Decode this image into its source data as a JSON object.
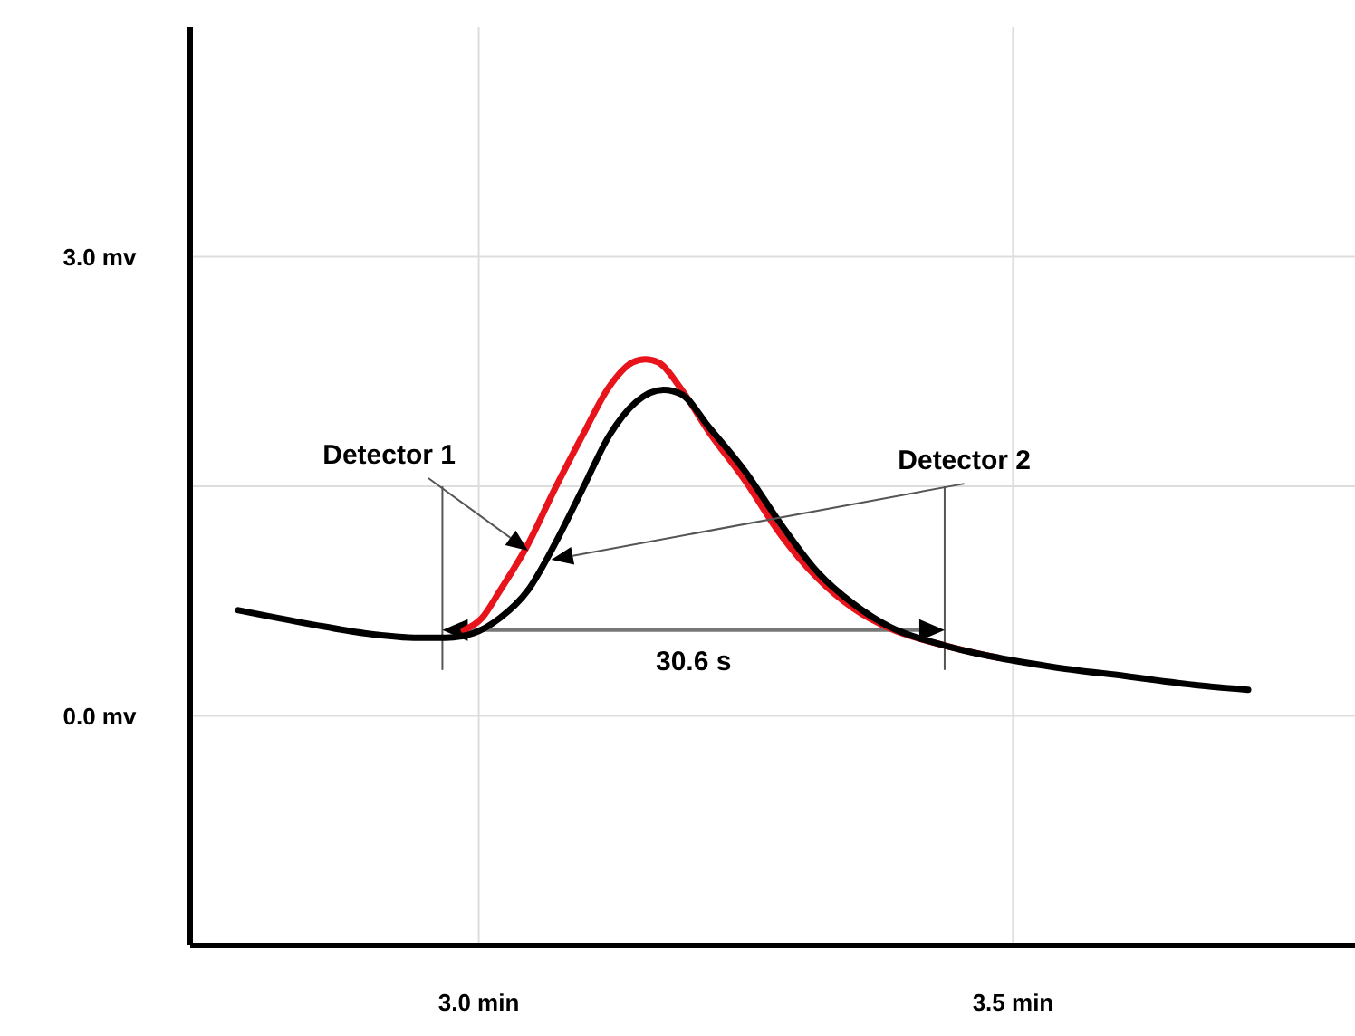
{
  "chart_data": {
    "type": "line",
    "xlim": [
      2.73,
      3.82
    ],
    "ylim": [
      -1.5,
      4.5
    ],
    "xticks": [
      {
        "value": 3.0,
        "label": "3.0 min"
      },
      {
        "value": 3.5,
        "label": "3.5 min"
      }
    ],
    "yticks": [
      {
        "value": 0,
        "label": "0.0 mv"
      },
      {
        "value": 1.5,
        "label": null
      },
      {
        "value": 3.0,
        "label": "3.0 mv"
      }
    ],
    "grid": true,
    "marker": "none",
    "line_style": "solid",
    "series": [
      {
        "color": "#e8141b",
        "x": [
          2.986,
          3.003,
          3.02,
          3.046,
          3.071,
          3.097,
          3.122,
          3.144,
          3.156,
          3.168,
          3.19,
          3.215,
          3.249,
          3.283,
          3.317,
          3.351,
          3.385,
          3.436,
          3.486
        ],
        "values": [
          0.56,
          0.64,
          0.82,
          1.12,
          1.48,
          1.83,
          2.15,
          2.31,
          2.33,
          2.31,
          2.13,
          1.86,
          1.54,
          1.18,
          0.9,
          0.7,
          0.57,
          0.46,
          0.38
        ]
      },
      {
        "color": "#000000",
        "x": [
          2.775,
          2.842,
          2.893,
          2.944,
          2.969,
          2.995,
          3.02,
          3.046,
          3.071,
          3.097,
          3.122,
          3.147,
          3.173,
          3.19,
          3.215,
          3.249,
          3.283,
          3.317,
          3.351,
          3.385,
          3.436,
          3.486,
          3.537,
          3.605,
          3.673,
          3.72
        ],
        "values": [
          0.69,
          0.6,
          0.54,
          0.51,
          0.51,
          0.54,
          0.64,
          0.82,
          1.12,
          1.48,
          1.83,
          2.05,
          2.13,
          2.1,
          1.89,
          1.6,
          1.25,
          0.94,
          0.73,
          0.58,
          0.46,
          0.38,
          0.32,
          0.26,
          0.2,
          0.17
        ]
      }
    ],
    "ref_lines": [
      {
        "axis": "x",
        "value": 2.966,
        "color": "#555555"
      },
      {
        "axis": "x",
        "value": 3.436,
        "color": "#555555"
      }
    ],
    "annotations": [
      "Detector 1",
      "Detector 2",
      "30.6 s"
    ]
  }
}
